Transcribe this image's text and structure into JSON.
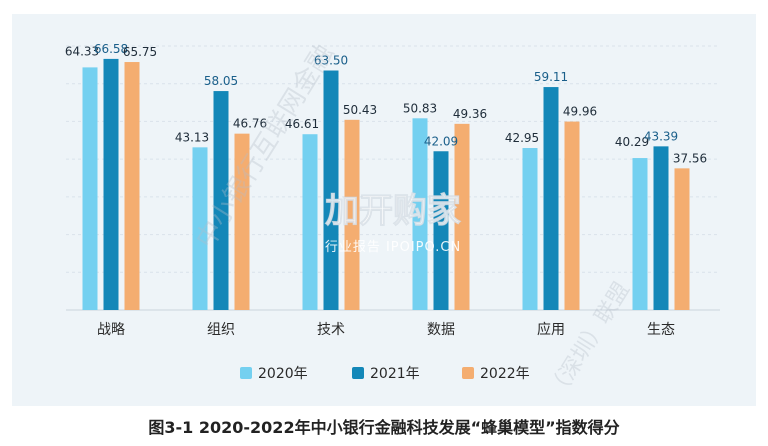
{
  "colors": {
    "s2020": "#74d0f0",
    "s2021": "#1387b8",
    "s2022": "#f4ad70",
    "background": "#eef4f8",
    "grid": "#d9e2ea"
  },
  "caption": "图3-1 2020-2022年中小银行金融科技发展“蜂巢模型”指数得分",
  "watermark": {
    "logo": "加开购家",
    "text": "行业报告 IPOIPO.CN",
    "diagonal_1": "中小银行互联网金融",
    "diagonal_2": "（深圳）联盟"
  },
  "chart_data": {
    "type": "bar",
    "categories": [
      "战略",
      "组织",
      "技术",
      "数据",
      "应用",
      "生态"
    ],
    "series": [
      {
        "name": "2020年",
        "values": [
          64.33,
          43.13,
          46.61,
          50.83,
          42.95,
          40.29
        ],
        "label_color": "#1f2d3a"
      },
      {
        "name": "2021年",
        "values": [
          66.58,
          58.05,
          63.5,
          42.09,
          59.11,
          43.39
        ],
        "label_color": "#1a5f8a"
      },
      {
        "name": "2022年",
        "values": [
          65.75,
          46.76,
          50.43,
          49.36,
          49.96,
          37.56
        ],
        "label_color": "#1f2d3a"
      }
    ],
    "ylim": [
      0,
      70
    ],
    "grid": true,
    "legend": "bottom"
  }
}
